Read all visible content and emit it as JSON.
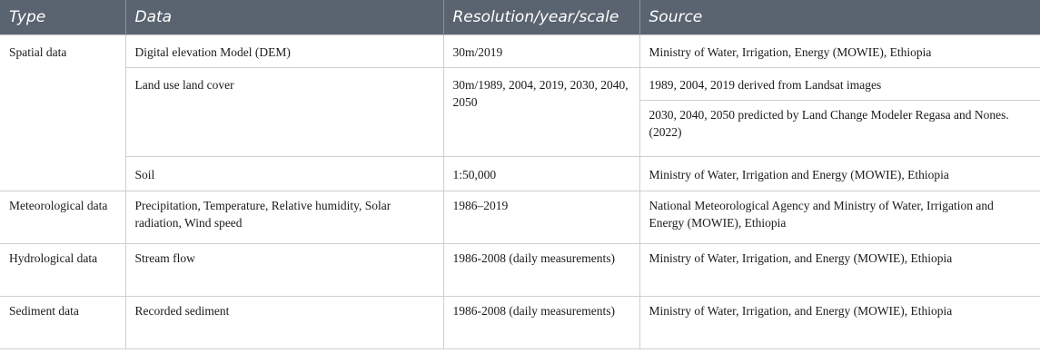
{
  "headers": {
    "type": "Type",
    "data": "Data",
    "resolution": "Resolution/year/scale",
    "source": "Source"
  },
  "rows": {
    "spatial": {
      "type": "Spatial data",
      "dem": {
        "data": "Digital elevation Model (DEM)",
        "resolution": "30m/2019",
        "source": "Ministry of Water, Irrigation, Energy (MOWIE), Ethiopia"
      },
      "lulc": {
        "data": "Land use land cover",
        "resolution": "30m/1989, 2004, 2019, 2030, 2040, 2050",
        "source_a": "1989, 2004, 2019 derived from Landsat images",
        "source_b": "2030, 2040, 2050 predicted by Land Change Modeler Regasa and Nones. (2022)"
      },
      "soil": {
        "data": "Soil",
        "resolution": "1:50,000",
        "source": "Ministry of Water, Irrigation and Energy (MOWIE), Ethiopia"
      }
    },
    "meteorological": {
      "type": "Meteorological data",
      "data": "Precipitation, Temperature, Relative humidity, Solar radiation, Wind speed",
      "resolution": "1986–2019",
      "source": "National Meteorological Agency and Ministry of Water, Irrigation and Energy (MOWIE), Ethiopia"
    },
    "hydrological": {
      "type": "Hydrological data",
      "data": "Stream flow",
      "resolution": "1986-2008 (daily measurements)",
      "source": "Ministry of Water, Irrigation, and Energy (MOWIE), Ethiopia"
    },
    "sediment": {
      "type": "Sediment data",
      "data": "Recorded sediment",
      "resolution": "1986-2008 (daily measurements)",
      "source": "Ministry of Water, Irrigation, and Energy (MOWIE), Ethiopia"
    }
  }
}
